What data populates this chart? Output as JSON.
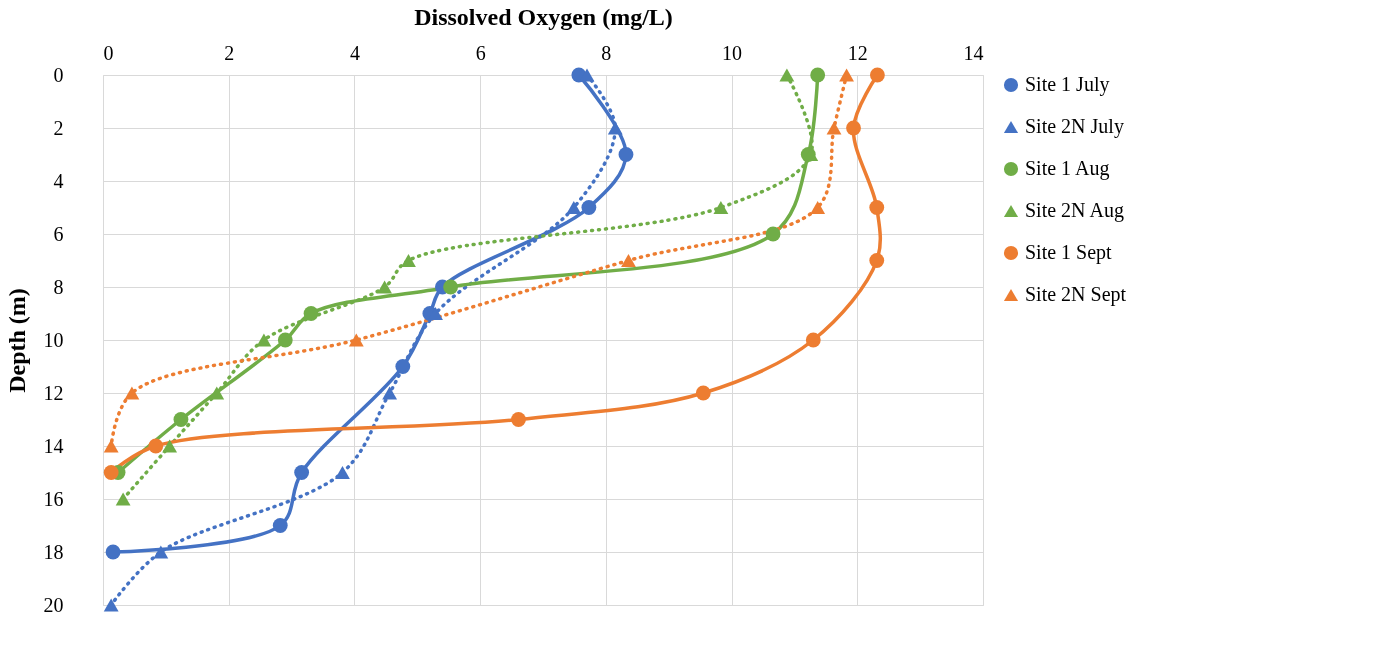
{
  "chart_data": {
    "type": "line",
    "xlabel": "Dissolved Oxygen (mg/L)",
    "ylabel": "Depth (m)",
    "xlim": [
      0,
      14
    ],
    "xticks": [
      0,
      2,
      4,
      6,
      8,
      10,
      12,
      14
    ],
    "ylim": [
      20,
      0
    ],
    "yticks": [
      0,
      2,
      4,
      6,
      8,
      10,
      12,
      14,
      16,
      18,
      20
    ],
    "grid": true,
    "legend": "right",
    "series": [
      {
        "name": "Site 1 July",
        "color": "#4472c4",
        "marker": "circle",
        "line_style": "solid",
        "x": [
          7.57,
          8.32,
          7.73,
          5.4,
          5.2,
          4.77,
          3.16,
          2.82,
          0.16
        ],
        "values": [
          0,
          3,
          5,
          8,
          9,
          11,
          15,
          17,
          18
        ]
      },
      {
        "name": "Site 2N July",
        "color": "#4472c4",
        "marker": "triangle",
        "line_style": "dotted",
        "x": [
          7.7,
          8.15,
          7.49,
          5.29,
          4.56,
          3.81,
          0.92,
          0.13
        ],
        "values": [
          0,
          2,
          5,
          9,
          12,
          15,
          18,
          20
        ]
      },
      {
        "name": "Site 1 Aug",
        "color": "#70ad47",
        "marker": "circle",
        "line_style": "solid",
        "x": [
          11.37,
          11.22,
          10.66,
          5.53,
          3.31,
          2.9,
          1.24,
          0.24
        ],
        "values": [
          0,
          3,
          6,
          8,
          9,
          10,
          13,
          15
        ]
      },
      {
        "name": "Site 2N Aug",
        "color": "#70ad47",
        "marker": "triangle",
        "line_style": "dotted",
        "x": [
          10.88,
          11.26,
          9.83,
          4.86,
          4.48,
          2.56,
          1.81,
          1.06,
          0.32
        ],
        "values": [
          0,
          3,
          5,
          7,
          8,
          10,
          12,
          14,
          16
        ]
      },
      {
        "name": "Site 1 Sept",
        "color": "#ed7d31",
        "marker": "circle",
        "line_style": "solid",
        "x": [
          12.32,
          11.94,
          12.31,
          12.31,
          11.3,
          9.55,
          6.61,
          0.84,
          0.13
        ],
        "values": [
          0,
          2,
          5,
          7,
          10,
          12,
          13,
          14,
          15
        ]
      },
      {
        "name": "Site 2N Sept",
        "color": "#ed7d31",
        "marker": "triangle",
        "line_style": "dotted",
        "x": [
          11.83,
          11.63,
          11.37,
          8.36,
          4.03,
          0.46,
          0.13
        ],
        "values": [
          0,
          2,
          5,
          7,
          10,
          12,
          14
        ]
      }
    ]
  }
}
